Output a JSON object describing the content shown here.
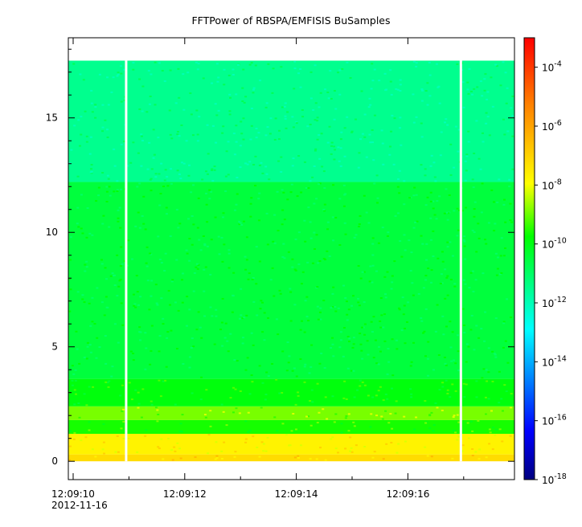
{
  "chart_data": {
    "type": "heatmap",
    "title": "FFTPower of RBSPA/EMFISIS  BuSamples",
    "xlabel": "",
    "ylabel": "",
    "x_tick_labels": [
      "12:09:10",
      "12:09:12",
      "12:09:14",
      "12:09:16"
    ],
    "x_date_label": "2012-11-16",
    "x_range_seconds": [
      0,
      8.1
    ],
    "y_ticks": [
      0,
      5,
      10,
      15
    ],
    "ylim": [
      -0.8,
      18.5
    ],
    "data_extent_y": [
      0,
      17.5
    ],
    "colorbar": {
      "scale": "log",
      "range": [
        1e-18,
        0.001
      ],
      "tick_labels": [
        {
          "base": "10",
          "exp": "-4",
          "value": -4
        },
        {
          "base": "10",
          "exp": "-6",
          "value": -6
        },
        {
          "base": "10",
          "exp": "-8",
          "value": -8
        },
        {
          "base": "10",
          "exp": "-10",
          "value": -10
        },
        {
          "base": "10",
          "exp": "-12",
          "value": -12
        },
        {
          "base": "10",
          "exp": "-14",
          "value": -14
        },
        {
          "base": "10",
          "exp": "-16",
          "value": -16
        },
        {
          "base": "10",
          "exp": "-18",
          "value": -18
        }
      ]
    },
    "power_bands": [
      {
        "y_from": 0,
        "y_to": 0.3,
        "log_power": -7.2
      },
      {
        "y_from": 0.3,
        "y_to": 1.2,
        "log_power": -7.7
      },
      {
        "y_from": 1.2,
        "y_to": 1.8,
        "log_power": -9.6
      },
      {
        "y_from": 1.8,
        "y_to": 2.4,
        "log_power": -8.9
      },
      {
        "y_from": 2.4,
        "y_to": 3.6,
        "log_power": -9.9
      },
      {
        "y_from": 3.6,
        "y_to": 12.2,
        "log_power": -10.5
      },
      {
        "y_from": 12.2,
        "y_to": 17.5,
        "log_power": -11.5
      }
    ],
    "gaps_seconds": [
      0.95,
      6.95
    ]
  }
}
